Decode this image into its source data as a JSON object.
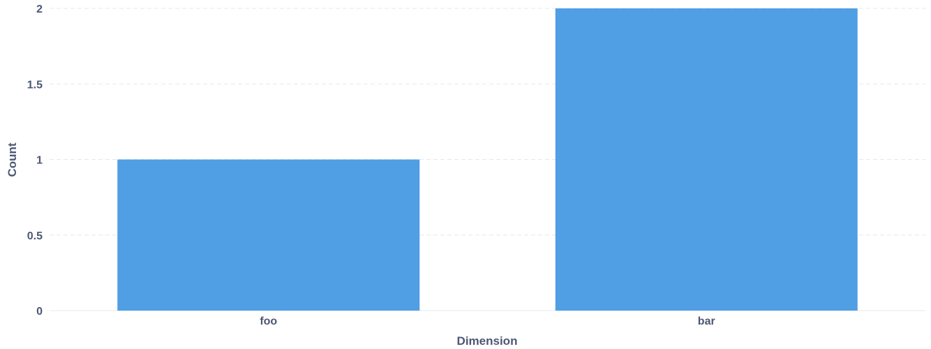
{
  "chart_data": {
    "type": "bar",
    "categories": [
      "foo",
      "bar"
    ],
    "values": [
      1,
      2
    ],
    "title": "",
    "xlabel": "Dimension",
    "ylabel": "Count",
    "ylim": [
      0,
      2
    ],
    "yticks": [
      0,
      0.5,
      1,
      1.5,
      2
    ],
    "ytick_labels": [
      "0",
      "0.5",
      "1",
      "1.5",
      "2"
    ],
    "grid": true,
    "bar_color": "#509ee3",
    "legend": "none"
  }
}
